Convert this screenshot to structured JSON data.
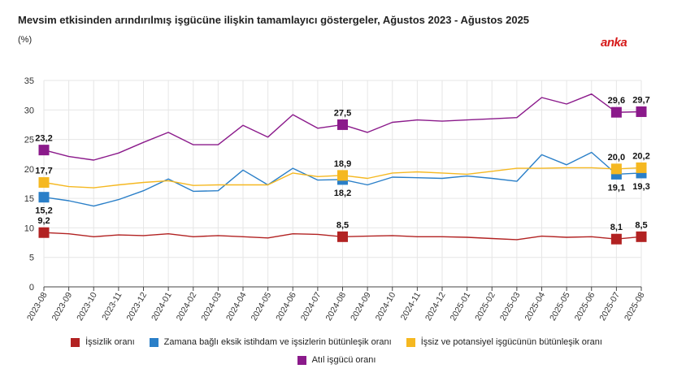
{
  "title": "Mevsim etkisinden arındırılmış işgücüne ilişkin tamamlayıcı göstergeler, Ağustos 2023 - Ağustos 2025",
  "unit": "(%)",
  "brand": "anka",
  "chart_data": {
    "type": "line",
    "categories": [
      "2023-08",
      "2023-09",
      "2023-10",
      "2023-11",
      "2023-12",
      "2024-01",
      "2024-02",
      "2024-03",
      "2024-04",
      "2024-05",
      "2024-06",
      "2024-07",
      "2024-08",
      "2024-09",
      "2024-10",
      "2024-11",
      "2024-12",
      "2025-01",
      "2025-02",
      "2025-03",
      "2025-04",
      "2025-05",
      "2025-06",
      "2025-07",
      "2025-08"
    ],
    "ylim": [
      0,
      35
    ],
    "yticks": [
      0,
      5,
      10,
      15,
      20,
      25,
      30,
      35
    ],
    "grid": true,
    "legend_position": "bottom",
    "series": [
      {
        "name": "İşsizlik oranı",
        "color": "#b22222",
        "values": [
          9.2,
          9.0,
          8.5,
          8.8,
          8.7,
          9.0,
          8.5,
          8.7,
          8.5,
          8.3,
          9.0,
          8.9,
          8.5,
          8.6,
          8.7,
          8.5,
          8.5,
          8.4,
          8.2,
          8.0,
          8.6,
          8.4,
          8.5,
          8.1,
          8.5
        ],
        "labels": [
          {
            "i": 0,
            "text": "9,2",
            "pos": "above"
          },
          {
            "i": 12,
            "text": "8,5",
            "pos": "above"
          },
          {
            "i": 23,
            "text": "8,1",
            "pos": "above"
          },
          {
            "i": 24,
            "text": "8,5",
            "pos": "above"
          }
        ]
      },
      {
        "name": "Zamana bağlı eksik istihdam ve işsizlerin bütünleşik oranı",
        "color": "#2a7fc8",
        "values": [
          15.2,
          14.6,
          13.7,
          14.8,
          16.3,
          18.3,
          16.2,
          16.3,
          19.8,
          17.3,
          20.1,
          18.1,
          18.2,
          17.3,
          18.6,
          18.5,
          18.4,
          18.8,
          18.4,
          17.9,
          22.4,
          20.7,
          22.8,
          19.1,
          19.3
        ],
        "labels": [
          {
            "i": 0,
            "text": "15,2",
            "pos": "below"
          },
          {
            "i": 12,
            "text": "18,2",
            "pos": "below"
          },
          {
            "i": 23,
            "text": "19,1",
            "pos": "below"
          },
          {
            "i": 24,
            "text": "19,3",
            "pos": "below"
          }
        ]
      },
      {
        "name": "İşsiz ve potansiyel işgücünün bütünleşik oranı",
        "color": "#f5b821",
        "values": [
          17.7,
          17.0,
          16.8,
          17.3,
          17.7,
          18.0,
          17.2,
          17.3,
          17.3,
          17.3,
          19.3,
          18.7,
          18.9,
          18.4,
          19.3,
          19.5,
          19.3,
          19.1,
          19.6,
          20.1,
          20.1,
          20.2,
          20.2,
          20.0,
          20.2
        ],
        "labels": [
          {
            "i": 0,
            "text": "17,7",
            "pos": "above"
          },
          {
            "i": 12,
            "text": "18,9",
            "pos": "above"
          },
          {
            "i": 23,
            "text": "20,0",
            "pos": "above"
          },
          {
            "i": 24,
            "text": "20,2",
            "pos": "above"
          }
        ]
      },
      {
        "name": "Atıl işgücü oranı",
        "color": "#8b1a8b",
        "values": [
          23.2,
          22.1,
          21.5,
          22.7,
          24.5,
          26.2,
          24.1,
          24.1,
          27.4,
          25.4,
          29.2,
          26.9,
          27.5,
          26.2,
          27.9,
          28.3,
          28.1,
          28.3,
          28.5,
          28.7,
          32.1,
          31.0,
          32.7,
          29.6,
          29.7
        ],
        "labels": [
          {
            "i": 0,
            "text": "23,2",
            "pos": "above"
          },
          {
            "i": 12,
            "text": "27,5",
            "pos": "above"
          },
          {
            "i": 23,
            "text": "29,6",
            "pos": "above"
          },
          {
            "i": 24,
            "text": "29,7",
            "pos": "above"
          }
        ]
      }
    ],
    "highlight_indices": [
      0,
      12,
      23,
      24
    ]
  }
}
